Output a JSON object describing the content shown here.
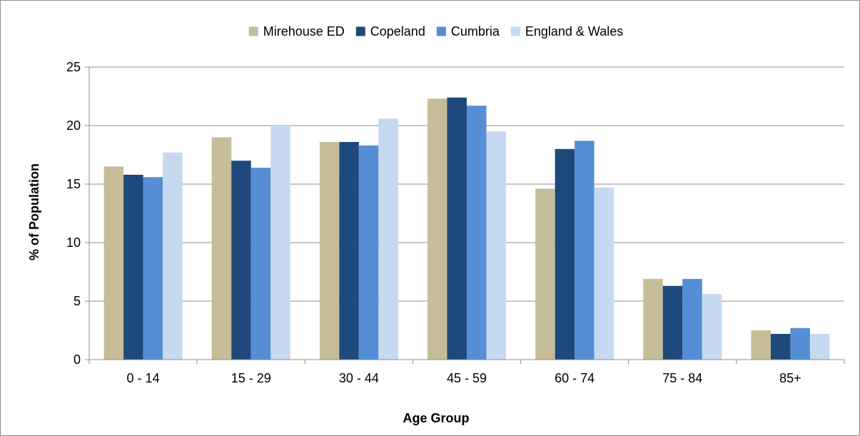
{
  "chart_data": {
    "type": "bar",
    "xlabel": "Age Group",
    "ylabel": "% of Population",
    "ylim": [
      0,
      25
    ],
    "yticks": [
      0,
      5,
      10,
      15,
      20,
      25
    ],
    "grid": true,
    "legend_position": "top",
    "categories": [
      "0 - 14",
      "15 - 29",
      "30 - 44",
      "45 - 59",
      "60 - 74",
      "75 - 84",
      "85+"
    ],
    "series": [
      {
        "name": "Mirehouse ED",
        "color": "#c4bd97",
        "values": [
          16.5,
          19.0,
          18.6,
          22.3,
          14.6,
          6.9,
          2.5
        ]
      },
      {
        "name": "Copeland",
        "color": "#1f497d",
        "values": [
          15.8,
          17.0,
          18.6,
          22.4,
          18.0,
          6.3,
          2.2
        ]
      },
      {
        "name": "Cumbria",
        "color": "#558ed5",
        "values": [
          15.6,
          16.4,
          18.3,
          21.7,
          18.7,
          6.9,
          2.7
        ]
      },
      {
        "name": "England & Wales",
        "color": "#c6d9f1",
        "values": [
          17.7,
          20.0,
          20.6,
          19.5,
          14.7,
          5.6,
          2.2
        ]
      }
    ]
  }
}
